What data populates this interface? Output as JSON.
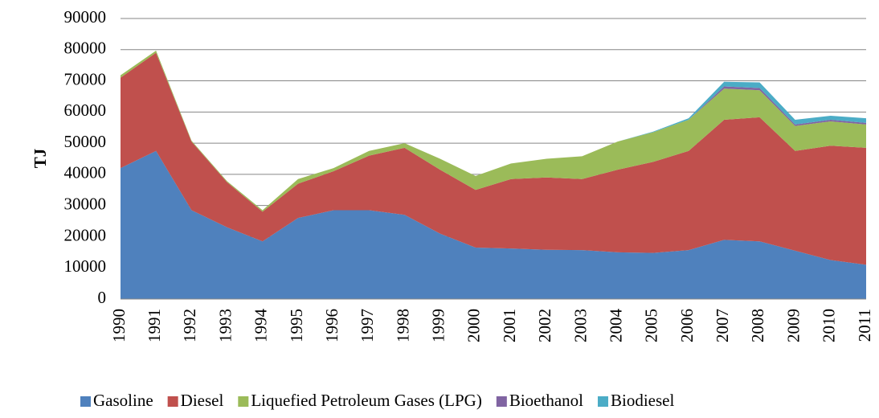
{
  "chart_data": {
    "type": "stacked-area",
    "y_label": "TJ",
    "categories": [
      "1990",
      "1991",
      "1992",
      "1993",
      "1994",
      "1995",
      "1996",
      "1997",
      "1998",
      "1999",
      "2000",
      "2001",
      "2002",
      "2003",
      "2004",
      "2005",
      "2006",
      "2007",
      "2008",
      "2009",
      "2010",
      "2011"
    ],
    "series": [
      {
        "name": "Gasoline",
        "color": "#4f81bd",
        "values": [
          42000,
          47500,
          28500,
          23000,
          18500,
          26000,
          28500,
          28500,
          27000,
          21000,
          16500,
          16200,
          15800,
          15700,
          15000,
          14800,
          15700,
          19000,
          18500,
          15500,
          12500,
          11000
        ]
      },
      {
        "name": "Diesel",
        "color": "#c0504d",
        "values": [
          29000,
          31500,
          22000,
          14500,
          9500,
          11000,
          12500,
          17500,
          21500,
          20500,
          18500,
          22300,
          23200,
          22800,
          26500,
          29200,
          31800,
          38500,
          39800,
          32000,
          36700,
          37500
        ]
      },
      {
        "name": "Liquefied Petroleum Gases (LPG)",
        "color": "#9bbb59",
        "values": [
          800,
          700,
          300,
          300,
          500,
          1500,
          1000,
          1500,
          1500,
          3500,
          4500,
          5000,
          6000,
          7300,
          9000,
          9500,
          10000,
          10000,
          8700,
          8000,
          7800,
          7500
        ]
      },
      {
        "name": "Bioethanol",
        "color": "#8064a2",
        "values": [
          0,
          0,
          0,
          0,
          0,
          0,
          0,
          0,
          0,
          0,
          0,
          0,
          0,
          0,
          0,
          0,
          0,
          700,
          700,
          500,
          500,
          500
        ]
      },
      {
        "name": "Biodiesel",
        "color": "#4bacc6",
        "values": [
          0,
          0,
          0,
          0,
          0,
          0,
          0,
          0,
          0,
          0,
          0,
          0,
          0,
          0,
          0,
          200,
          500,
          1500,
          1800,
          1500,
          1300,
          1500
        ]
      }
    ],
    "ylim": [
      0,
      90000
    ],
    "yticks": [
      0,
      10000,
      20000,
      30000,
      40000,
      50000,
      60000,
      70000,
      80000,
      90000
    ],
    "grid": true,
    "legend": "bottom"
  }
}
